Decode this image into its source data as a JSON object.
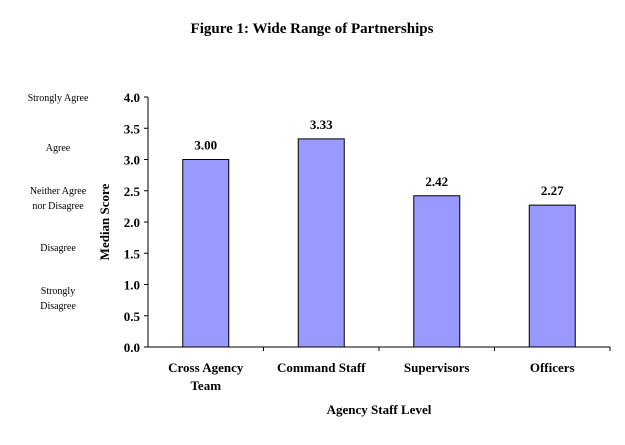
{
  "chart_data": {
    "type": "bar",
    "title": "Figure 1: Wide Range of Partnerships",
    "xlabel": "Agency Staff Level",
    "ylabel": "Median Score",
    "categories": [
      "Cross Agency Team",
      "Command Staff",
      "Supervisors",
      "Officers"
    ],
    "category_lines": [
      [
        "Cross Agency",
        "Team"
      ],
      [
        "Command Staff"
      ],
      [
        "Supervisors"
      ],
      [
        "Officers"
      ]
    ],
    "values": [
      3.0,
      3.33,
      2.42,
      2.27
    ],
    "data_labels": [
      "3.00",
      "3.33",
      "2.42",
      "2.27"
    ],
    "ylim": [
      0,
      4
    ],
    "yticks": [
      "0.0",
      "0.5",
      "1.0",
      "1.5",
      "2.0",
      "2.5",
      "3.0",
      "3.5",
      "4.0"
    ],
    "scale_labels": [
      {
        "lines": [
          "Strongly Agree"
        ],
        "value": 4.0
      },
      {
        "lines": [
          "Agree"
        ],
        "value": 3.2
      },
      {
        "lines": [
          "Neither Agree",
          "nor Disagree"
        ],
        "value": 2.4
      },
      {
        "lines": [
          "Disagree"
        ],
        "value": 1.6
      },
      {
        "lines": [
          "Strongly",
          "Disagree"
        ],
        "value": 0.8
      }
    ],
    "grid": false,
    "bar_color": "#9999ff"
  }
}
